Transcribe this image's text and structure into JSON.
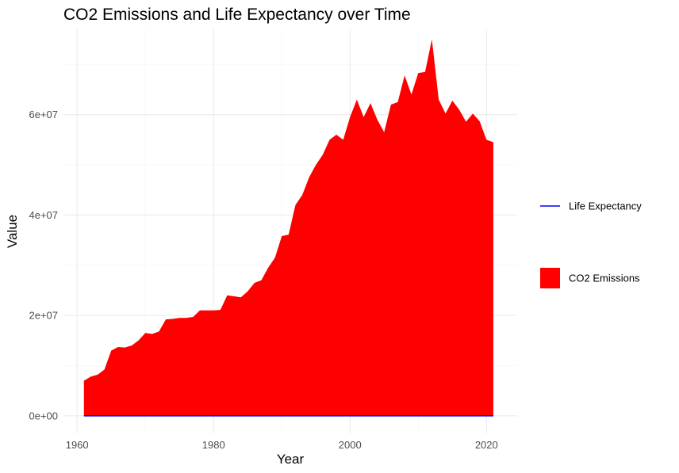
{
  "chart_data": {
    "type": "area",
    "title": "CO2 Emissions and Life Expectancy over Time",
    "xlabel": "Year",
    "ylabel": "Value",
    "xlim": [
      1958,
      2024.5
    ],
    "ylim": [
      -3500000,
      77000000
    ],
    "x_ticks": [
      1960,
      1980,
      2000,
      2020
    ],
    "x_tick_labels": [
      "1960",
      "1980",
      "2000",
      "2020"
    ],
    "y_ticks": [
      0,
      20000000,
      40000000,
      60000000
    ],
    "y_tick_labels": [
      "0e+00",
      "2e+07",
      "4e+07",
      "6e+07"
    ],
    "grid": true,
    "legend_position": "right",
    "series": [
      {
        "name": "CO2 Emissions",
        "kind": "area",
        "color": "#ff0000",
        "x": [
          1961,
          1962,
          1963,
          1964,
          1965,
          1966,
          1967,
          1968,
          1969,
          1970,
          1971,
          1972,
          1973,
          1974,
          1975,
          1976,
          1977,
          1978,
          1979,
          1980,
          1981,
          1982,
          1983,
          1984,
          1985,
          1986,
          1987,
          1988,
          1989,
          1990,
          1991,
          1992,
          1993,
          1994,
          1995,
          1996,
          1997,
          1998,
          1999,
          2000,
          2001,
          2002,
          2003,
          2004,
          2005,
          2006,
          2007,
          2008,
          2009,
          2010,
          2011,
          2012,
          2013,
          2014,
          2015,
          2016,
          2017,
          2018,
          2019,
          2020,
          2021
        ],
        "y": [
          7000000,
          7800000,
          8200000,
          9200000,
          13000000,
          13700000,
          13600000,
          14000000,
          15000000,
          16500000,
          16300000,
          16800000,
          19200000,
          19300000,
          19500000,
          19500000,
          19700000,
          21000000,
          21000000,
          21000000,
          21100000,
          24000000,
          23800000,
          23600000,
          24800000,
          26500000,
          27000000,
          29500000,
          31500000,
          35800000,
          36100000,
          42000000,
          44000000,
          47500000,
          50000000,
          52000000,
          55000000,
          56000000,
          55000000,
          59500000,
          63000000,
          59500000,
          62300000,
          59000000,
          56500000,
          62000000,
          62500000,
          67800000,
          64000000,
          68300000,
          68500000,
          75000000,
          63000000,
          60200000,
          62800000,
          61000000,
          58600000,
          60200000,
          58700000,
          55000000,
          54500000
        ]
      },
      {
        "name": "Life Expectancy",
        "kind": "line",
        "color": "#0000ff",
        "x": [
          1961,
          2021
        ],
        "y": [
          65,
          75
        ]
      }
    ]
  }
}
